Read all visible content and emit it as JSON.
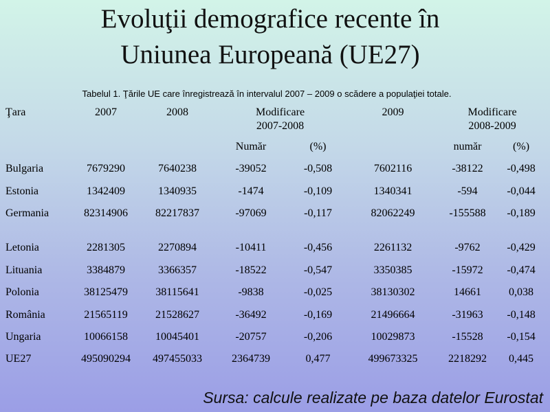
{
  "title": {
    "line1": "Evoluţii demografice recente în",
    "line2": "Uniunea Europeană (UE27)"
  },
  "caption": "Tabelul 1. Ţările UE care înregistrează în intervalul 2007 – 2009 o scădere a populaţiei totale.",
  "table": {
    "headers": {
      "country": "Ţara",
      "y2007": "2007",
      "y2008": "2008",
      "mod1_line1": "Modificare",
      "mod1_line2": "2007-2008",
      "y2009": "2009",
      "mod2_line1": "Modificare",
      "mod2_line2": "2008-2009"
    },
    "subheaders": {
      "num1": "Număr",
      "pct1": "(%)",
      "num2": "număr",
      "pct2": "(%)"
    },
    "rows": [
      {
        "country": "Bulgaria",
        "y2007": "7679290",
        "y2008": "7640238",
        "num1": "-39052",
        "pct1": "-0,508",
        "y2009": "7602116",
        "num2": "-38122",
        "pct2": "-0,498"
      },
      {
        "country": "Estonia",
        "y2007": "1342409",
        "y2008": "1340935",
        "num1": "-1474",
        "pct1": "-0,109",
        "y2009": "1340341",
        "num2": "-594",
        "pct2": "-0,044"
      },
      {
        "country": "Germania",
        "y2007": "82314906",
        "y2008": "82217837",
        "num1": "-97069",
        "pct1": "-0,117",
        "y2009": "82062249",
        "num2": "-155588",
        "pct2": "-0,189"
      },
      {
        "country": "Letonia",
        "y2007": "2281305",
        "y2008": "2270894",
        "num1": "-10411",
        "pct1": "-0,456",
        "y2009": "2261132",
        "num2": "-9762",
        "pct2": "-0,429"
      },
      {
        "country": "Lituania",
        "y2007": "3384879",
        "y2008": "3366357",
        "num1": "-18522",
        "pct1": "-0,547",
        "y2009": "3350385",
        "num2": "-15972",
        "pct2": "-0,474"
      },
      {
        "country": "Polonia",
        "y2007": "38125479",
        "y2008": "38115641",
        "num1": "-9838",
        "pct1": "-0,025",
        "y2009": "38130302",
        "num2": "14661",
        "pct2": "0,038"
      },
      {
        "country": "România",
        "y2007": "21565119",
        "y2008": "21528627",
        "num1": "-36492",
        "pct1": "-0,169",
        "y2009": "21496664",
        "num2": "-31963",
        "pct2": "-0,148"
      },
      {
        "country": "Ungaria",
        "y2007": "10066158",
        "y2008": "10045401",
        "num1": "-20757",
        "pct1": "-0,206",
        "y2009": "10029873",
        "num2": "-15528",
        "pct2": "-0,154"
      },
      {
        "country": "UE27",
        "y2007": "495090294",
        "y2008": "497455033",
        "num1": "2364739",
        "pct1": "0,477",
        "y2009": "499673325",
        "num2": "2218292",
        "pct2": "0,445"
      }
    ]
  },
  "source": "Sursa: calcule realizate pe baza datelor Eurostat"
}
